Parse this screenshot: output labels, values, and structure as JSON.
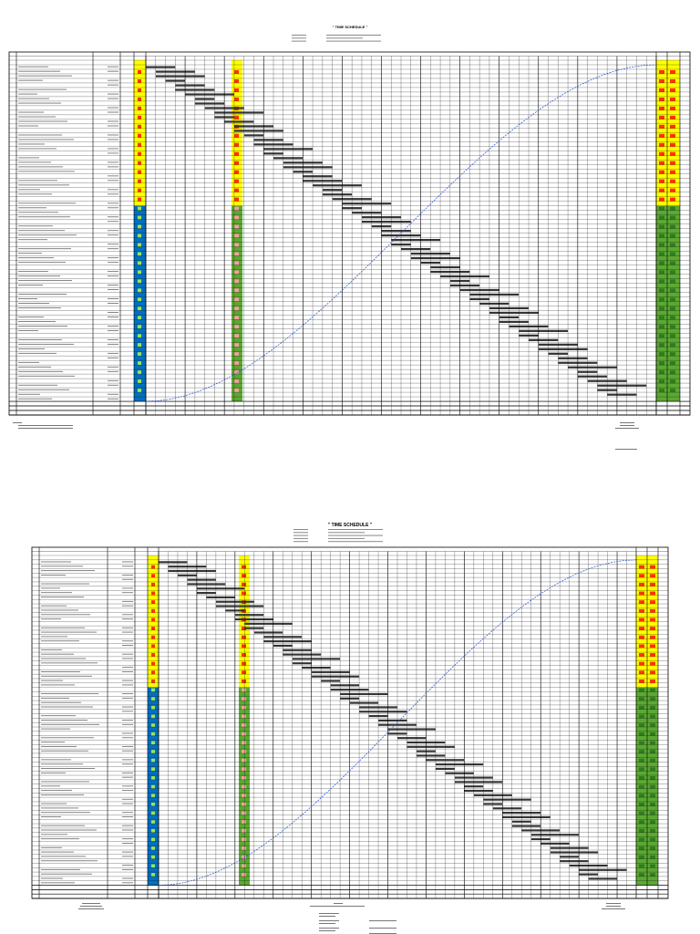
{
  "sheets": [
    {
      "title": "\" TIME SCHEDULE \""
    },
    {
      "title": "\" TIME SCHEDULE \""
    }
  ],
  "colors": {
    "grid": "#000000",
    "weight_top": "#ffff00",
    "weight_bottom_top_sheet": "#0070c0",
    "progress_top": "#ffff00",
    "progress_bottom": "#5ca832",
    "gantt_bar": "#333333",
    "s_curve": "#1f4fd1",
    "marker": "#ff3300"
  }
}
